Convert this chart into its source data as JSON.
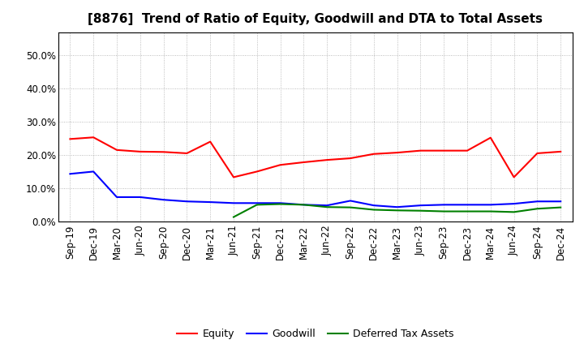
{
  "title": "[8876]  Trend of Ratio of Equity, Goodwill and DTA to Total Assets",
  "x_labels": [
    "Sep-19",
    "Dec-19",
    "Mar-20",
    "Jun-20",
    "Sep-20",
    "Dec-20",
    "Mar-21",
    "Jun-21",
    "Sep-21",
    "Dec-21",
    "Mar-22",
    "Jun-22",
    "Sep-22",
    "Dec-22",
    "Mar-23",
    "Jun-23",
    "Sep-23",
    "Dec-23",
    "Mar-24",
    "Jun-24",
    "Sep-24",
    "Dec-24"
  ],
  "equity": [
    0.248,
    0.253,
    0.215,
    0.21,
    0.209,
    0.205,
    0.24,
    0.133,
    0.15,
    0.17,
    0.178,
    0.185,
    0.19,
    0.203,
    0.207,
    0.213,
    0.213,
    0.213,
    0.252,
    0.133,
    0.205,
    0.21
  ],
  "goodwill": [
    0.143,
    0.15,
    0.073,
    0.073,
    0.065,
    0.06,
    0.058,
    0.055,
    0.055,
    0.055,
    0.05,
    0.048,
    0.062,
    0.048,
    0.043,
    0.048,
    0.05,
    0.05,
    0.05,
    0.053,
    0.06,
    0.06
  ],
  "dta": [
    null,
    null,
    null,
    null,
    null,
    null,
    null,
    0.013,
    0.05,
    0.052,
    0.05,
    0.043,
    0.042,
    0.035,
    0.033,
    0.032,
    0.03,
    0.03,
    0.03,
    0.028,
    0.038,
    0.042
  ],
  "equity_color": "#ff0000",
  "goodwill_color": "#0000ff",
  "dta_color": "#008000",
  "ylim": [
    0.0,
    0.57
  ],
  "yticks": [
    0.0,
    0.1,
    0.2,
    0.3,
    0.4,
    0.5
  ],
  "bg_color": "#ffffff",
  "grid_color": "#aaaaaa",
  "legend_labels": [
    "Equity",
    "Goodwill",
    "Deferred Tax Assets"
  ],
  "title_fontsize": 11,
  "tick_fontsize": 8.5,
  "legend_fontsize": 9
}
